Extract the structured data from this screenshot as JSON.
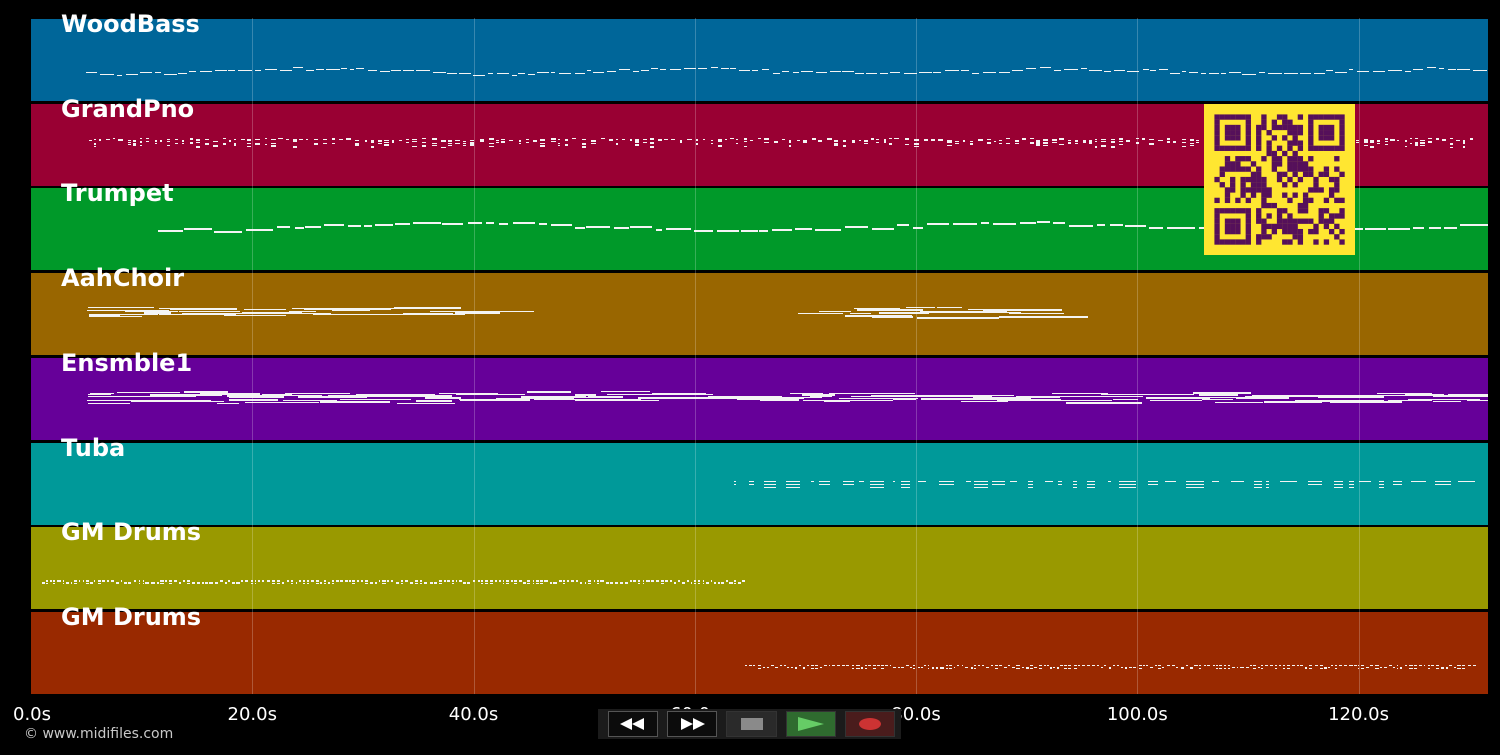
{
  "tracks": [
    {
      "name": "WoodBass",
      "color": "#006699",
      "pattern": "bass",
      "start_s": 5,
      "end_s": 130.5
    },
    {
      "name": "GrandPno",
      "color": "#990033",
      "pattern": "piano",
      "start_s": 5.2,
      "end_s": 130.5
    },
    {
      "name": "Trumpet",
      "color": "#009929",
      "pattern": "melody",
      "start_s": 11.5,
      "end_s": 129.5
    },
    {
      "name": "AahChoir",
      "color": "#996600",
      "pattern": "pad",
      "start_s": 5,
      "end_s": 91.5,
      "gap": [
        38.5,
        67.8
      ]
    },
    {
      "name": "Ensmble1",
      "color": "#660099",
      "pattern": "pad",
      "start_s": 5,
      "end_s": 130.5
    },
    {
      "name": "Tuba",
      "color": "#009999",
      "pattern": "sparse",
      "start_s": 63.5,
      "end_s": 130.5
    },
    {
      "name": "GM Drums",
      "color": "#999900",
      "pattern": "drums",
      "start_s": 1,
      "end_s": 64.5
    },
    {
      "name": "GM Drums",
      "color": "#992900",
      "pattern": "drums",
      "start_s": 64.5,
      "end_s": 130.5
    }
  ],
  "timeline": {
    "max_s": 131.7,
    "ticks": [
      0,
      20,
      40,
      60,
      80,
      100,
      120
    ],
    "labels": [
      "0.0s",
      "20.0s",
      "40.0s",
      "60.0s",
      "80.0s",
      "100.0s",
      "120.0s"
    ]
  },
  "transport": {
    "rewind_icon": "rewind-icon",
    "forward_icon": "fast-forward-icon",
    "stop_icon": "stop-icon",
    "play_icon": "play-icon",
    "record_icon": "record-icon",
    "play_color": "#66cc66",
    "record_color": "#cc3333"
  },
  "qr": {
    "fg": "#55105a",
    "bg": "#ffe631"
  },
  "footer": {
    "copyright": "© www.midifiles.com"
  }
}
